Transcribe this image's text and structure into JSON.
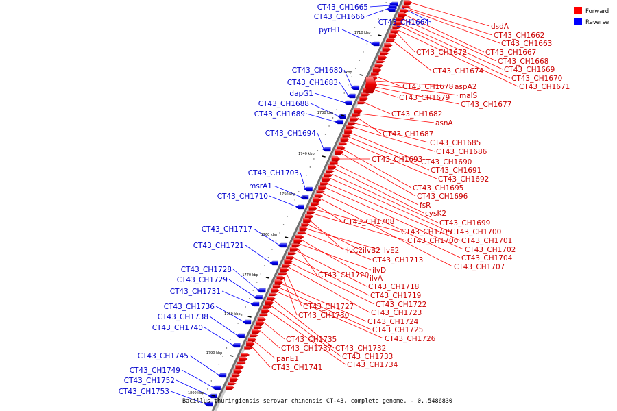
{
  "caption": "Bacillus thuringiensis serovar chinensis CT-43, complete genome. - 0..5486830",
  "legend": {
    "forward": {
      "label": "Forward",
      "color": "#ff0000"
    },
    "reverse": {
      "label": "Reverse",
      "color": "#0000ff"
    }
  },
  "scale_ticks": [
    "1710 kbp",
    "1720 kbp",
    "1730 kbp",
    "1740 kbp",
    "1750 kbp",
    "1760 kbp",
    "1770 kbp",
    "1780 kbp",
    "1790 kbp",
    "1800 kbp"
  ],
  "forward_labels": [
    "dsdA",
    "CT43_CH1662",
    "CT43_CH1663",
    "CT43_CH1667",
    "CT43_CH1672",
    "CT43_CH1668",
    "CT43_CH1669",
    "CT43_CH1674",
    "CT43_CH1670",
    "CT43_CH1671",
    "CT43_CH1678",
    "aspA2",
    "malS",
    "CT43_CH1679",
    "CT43_CH1677",
    "CT43_CH1682",
    "asnA",
    "CT43_CH1687",
    "CT43_CH1685",
    "CT43_CH1686",
    "CT43_CH1693",
    "CT43_CH1690",
    "CT43_CH1691",
    "CT43_CH1692",
    "CT43_CH1695",
    "CT43_CH1696",
    "fsR",
    "cysK2",
    "CT43_CH1708",
    "CT43_CH1699",
    "CT43_CH1705",
    "CT43_CH1700",
    "CT43_CH1706",
    "CT43_CH1701",
    "CT43_CH1702",
    "ilvC2",
    "ilvB2",
    "ilvE2",
    "CT43_CH1704",
    "CT43_CH1713",
    "CT43_CH1707",
    "ilvD",
    "CT43_CH1720",
    "ilvA",
    "CT43_CH1718",
    "CT43_CH1719",
    "CT43_CH1722",
    "CT43_CH1727",
    "CT43_CH1723",
    "CT43_CH1730",
    "CT43_CH1724",
    "CT43_CH1725",
    "CT43_CH1726",
    "CT43_CH1735",
    "CT43_CH1732",
    "CT43_CH1737",
    "CT43_CH1733",
    "panE1",
    "CT43_CH1734",
    "CT43_CH1741"
  ],
  "reverse_labels": [
    "CT43_CH1665",
    "CT43_CH1666",
    "CT43_CH1664",
    "pyrH1",
    "CT43_CH1680",
    "CT43_CH1683",
    "dapG1",
    "CT43_CH1688",
    "CT43_CH1689",
    "CT43_CH1694",
    "CT43_CH1703",
    "msrA1",
    "CT43_CH1710",
    "CT43_CH1717",
    "CT43_CH1721",
    "CT43_CH1728",
    "CT43_CH1729",
    "CT43_CH1731",
    "CT43_CH1736",
    "CT43_CH1738",
    "CT43_CH1740",
    "CT43_CH1745",
    "CT43_CH1749",
    "CT43_CH1752",
    "CT43_CH1753"
  ]
}
